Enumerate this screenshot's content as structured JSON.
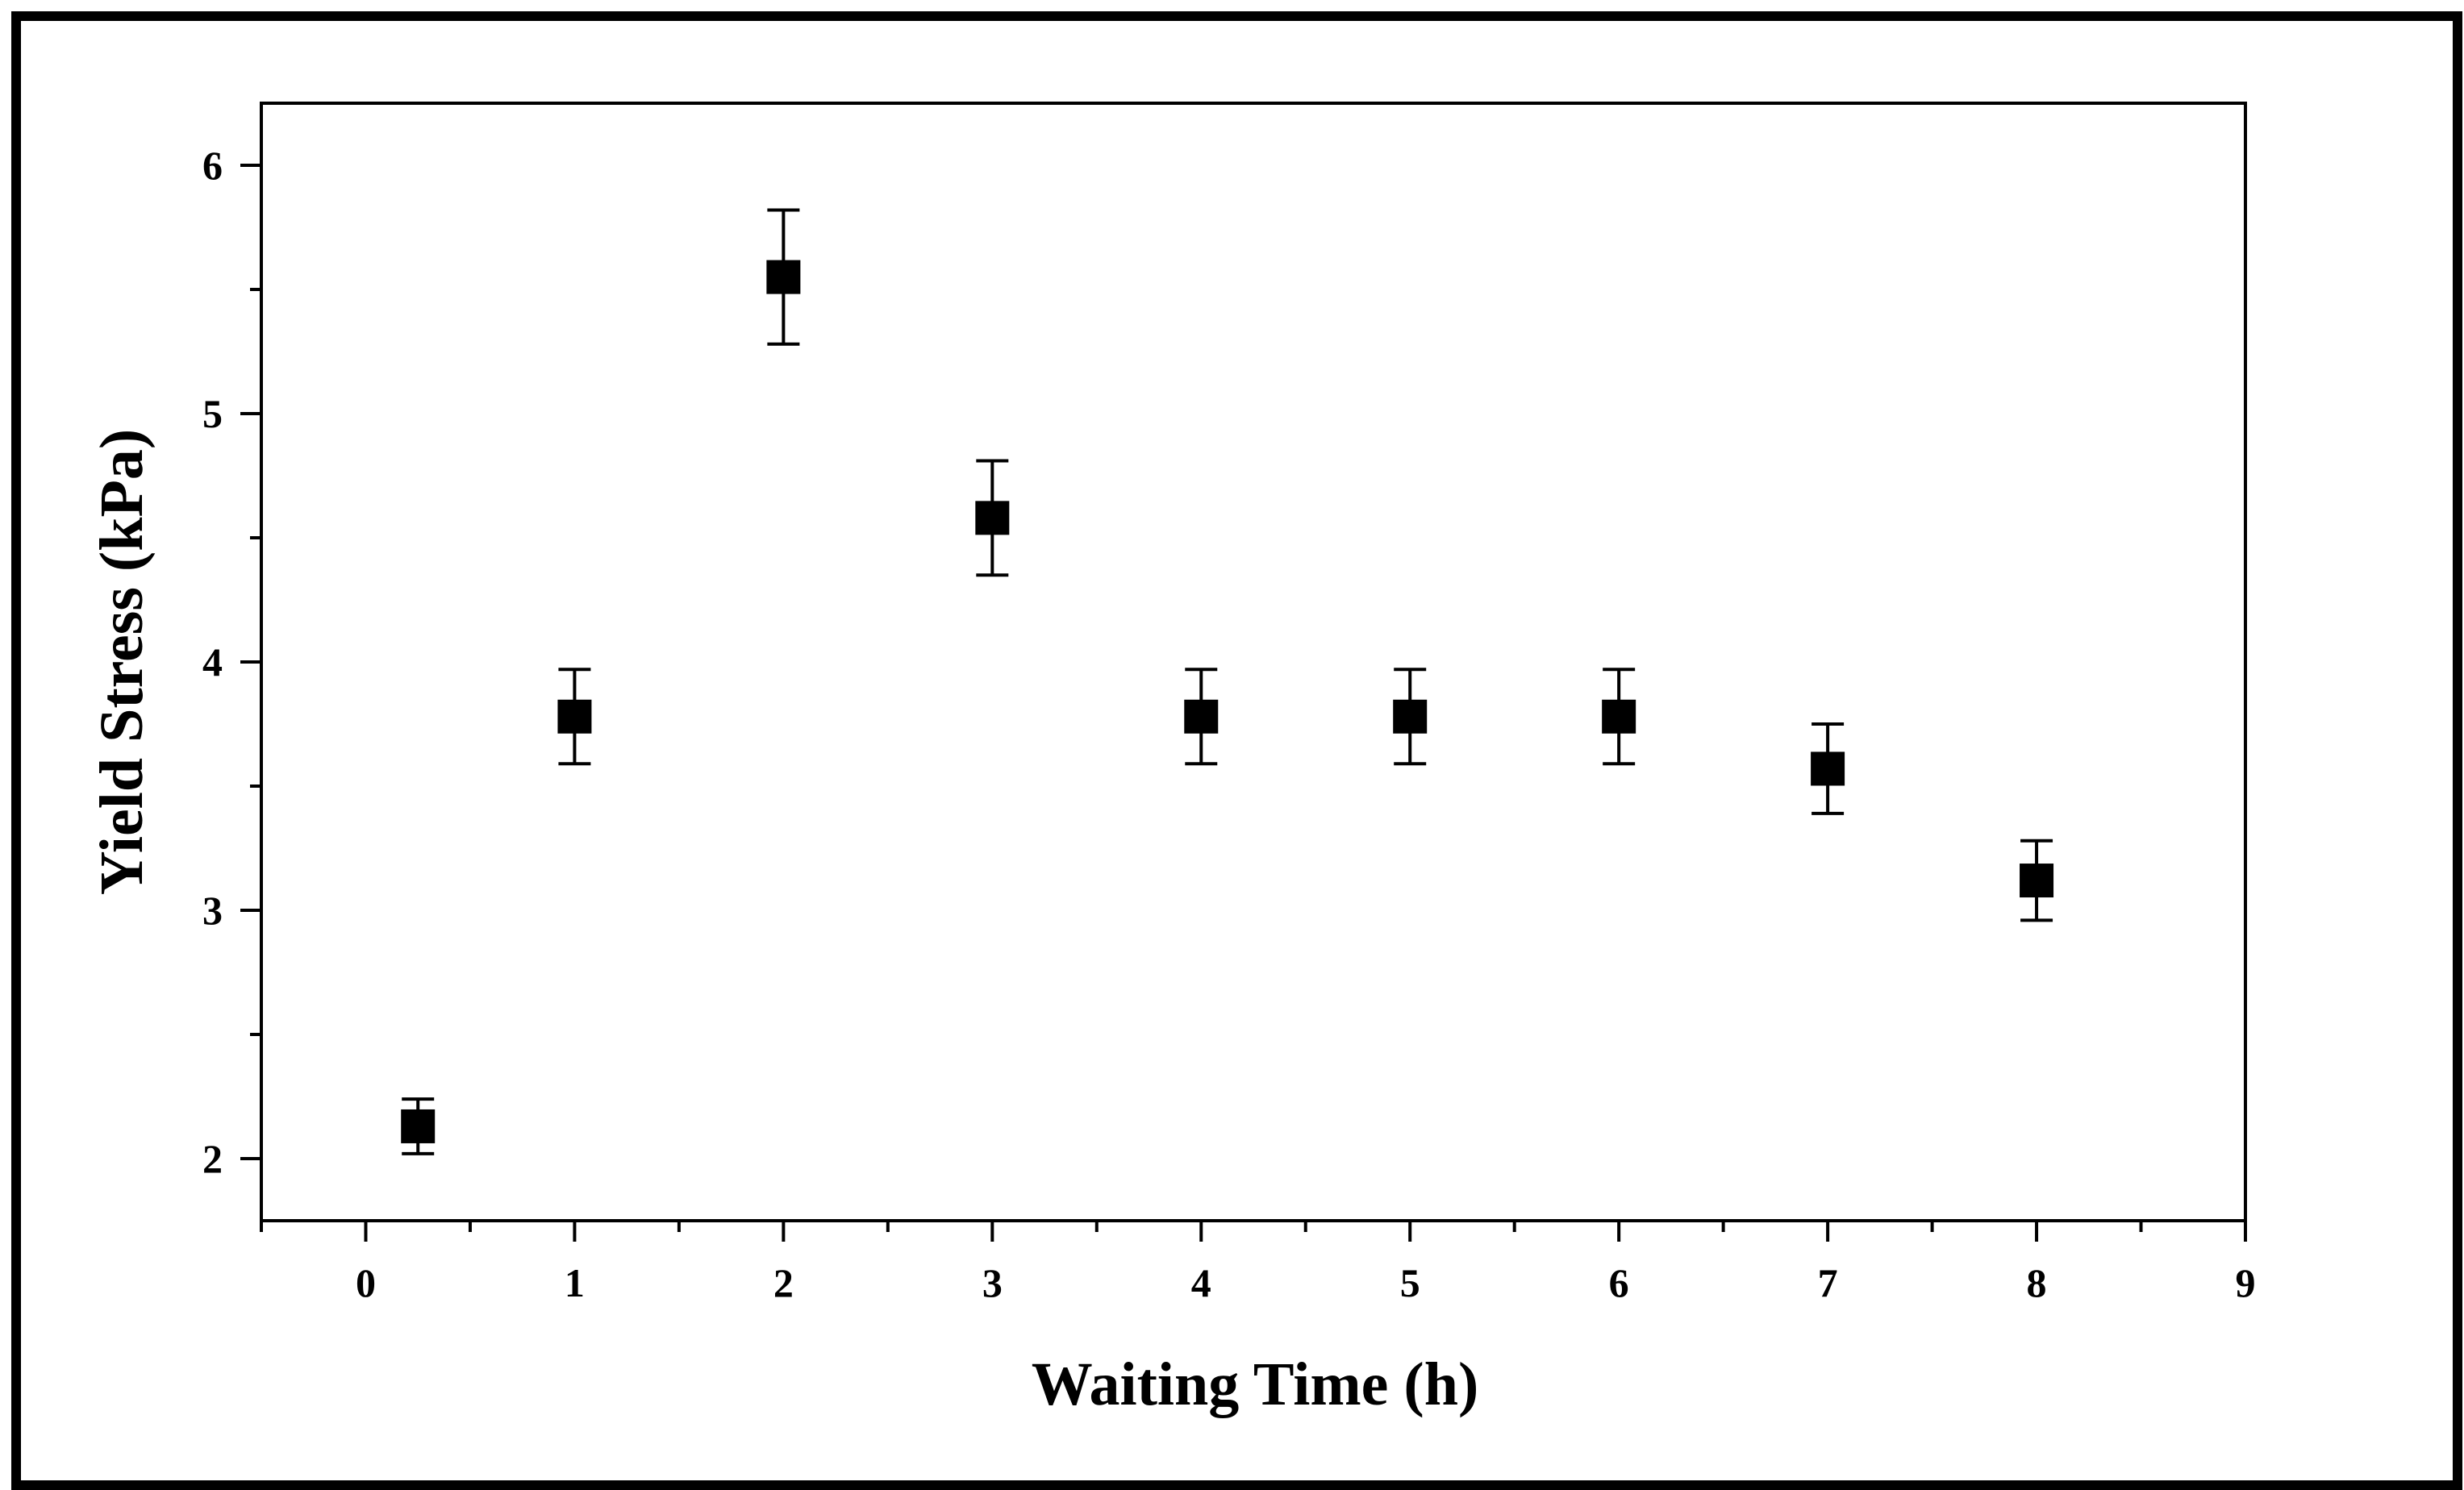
{
  "chart_data": {
    "type": "scatter",
    "title": "",
    "xlabel": "Waiting Time (h)",
    "ylabel": "Yield Stress (kPa)",
    "xlim": [
      -0.5,
      9
    ],
    "ylim": [
      1.75,
      6.25
    ],
    "x_ticks": [
      0,
      1,
      2,
      3,
      4,
      5,
      6,
      7,
      8,
      9
    ],
    "y_ticks": [
      2,
      3,
      4,
      5,
      6
    ],
    "x_minor_step": 0.5,
    "y_minor_step": 0.5,
    "grid": false,
    "legend": "none",
    "marker": "filled-square",
    "marker_color": "#000000",
    "series": [
      {
        "x": [
          0.25,
          1,
          2,
          3,
          4,
          5,
          6,
          7,
          8
        ],
        "y": [
          2.13,
          3.78,
          5.55,
          4.58,
          3.78,
          3.78,
          3.78,
          3.57,
          3.12
        ],
        "error": [
          0.11,
          0.19,
          0.27,
          0.23,
          0.19,
          0.19,
          0.19,
          0.18,
          0.16
        ]
      }
    ]
  }
}
